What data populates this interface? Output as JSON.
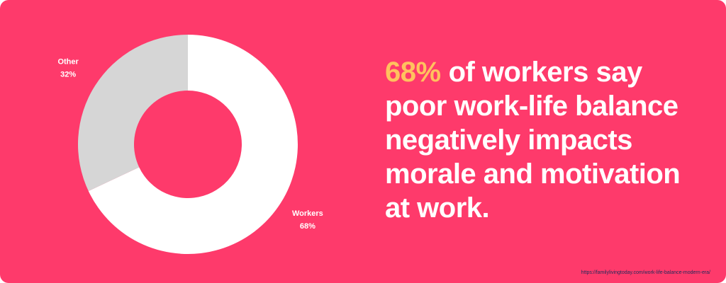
{
  "chart_data": {
    "type": "pie",
    "categories": [
      "Workers",
      "Other"
    ],
    "values": [
      68,
      32
    ],
    "value_labels": [
      "68%",
      "32%"
    ],
    "colors": [
      "#ffffff",
      "#d6d6d6"
    ],
    "donut": true
  },
  "headline": {
    "highlight": "68%",
    "text": "of workers say poor work-life balance negatively impacts morale and motivation at work."
  },
  "source": "https://familylivingtoday.com/work-life-balance-modern-era/"
}
